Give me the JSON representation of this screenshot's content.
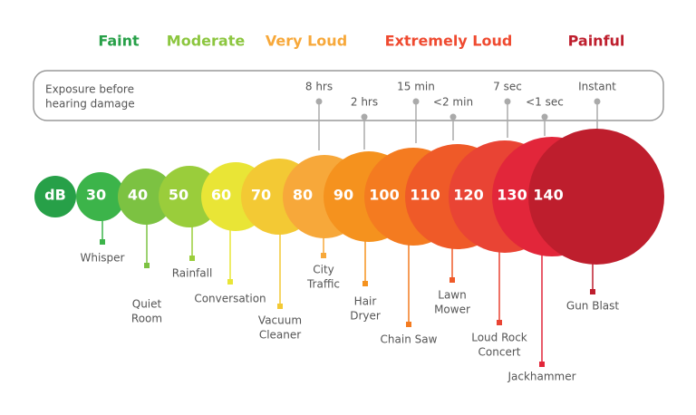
{
  "header": {
    "categories": [
      "Faint",
      "Moderate",
      "Very Loud",
      "Extremely Loud",
      "Painful"
    ]
  },
  "exposure": {
    "label": [
      "Exposure before",
      "hearing damage"
    ],
    "times": [
      "8 hrs",
      "2 hrs",
      "15 min",
      "<2 min",
      "7 sec",
      "<1 sec",
      "Instant"
    ]
  },
  "scale": {
    "unit": "dB",
    "levels": [
      {
        "db": 30,
        "source": [
          "Whisper"
        ]
      },
      {
        "db": 40,
        "source": [
          "Quiet",
          "Room"
        ]
      },
      {
        "db": 50,
        "source": [
          "Rainfall"
        ]
      },
      {
        "db": 60,
        "source": [
          "Conversation"
        ]
      },
      {
        "db": 70,
        "source": [
          "Vacuum",
          "Cleaner"
        ]
      },
      {
        "db": 80,
        "source": [
          "City",
          "Traffic"
        ]
      },
      {
        "db": 90,
        "source": [
          "Hair",
          "Dryer"
        ]
      },
      {
        "db": 100,
        "source": [
          "Chain Saw"
        ]
      },
      {
        "db": 110,
        "source": [
          "Lawn",
          "Mower"
        ]
      },
      {
        "db": 120,
        "source": [
          "Loud Rock",
          "Concert"
        ]
      },
      {
        "db": 130,
        "source": [
          "Jackhammer"
        ]
      },
      {
        "db": 140,
        "source": [
          "Gun Blast"
        ]
      }
    ]
  }
}
